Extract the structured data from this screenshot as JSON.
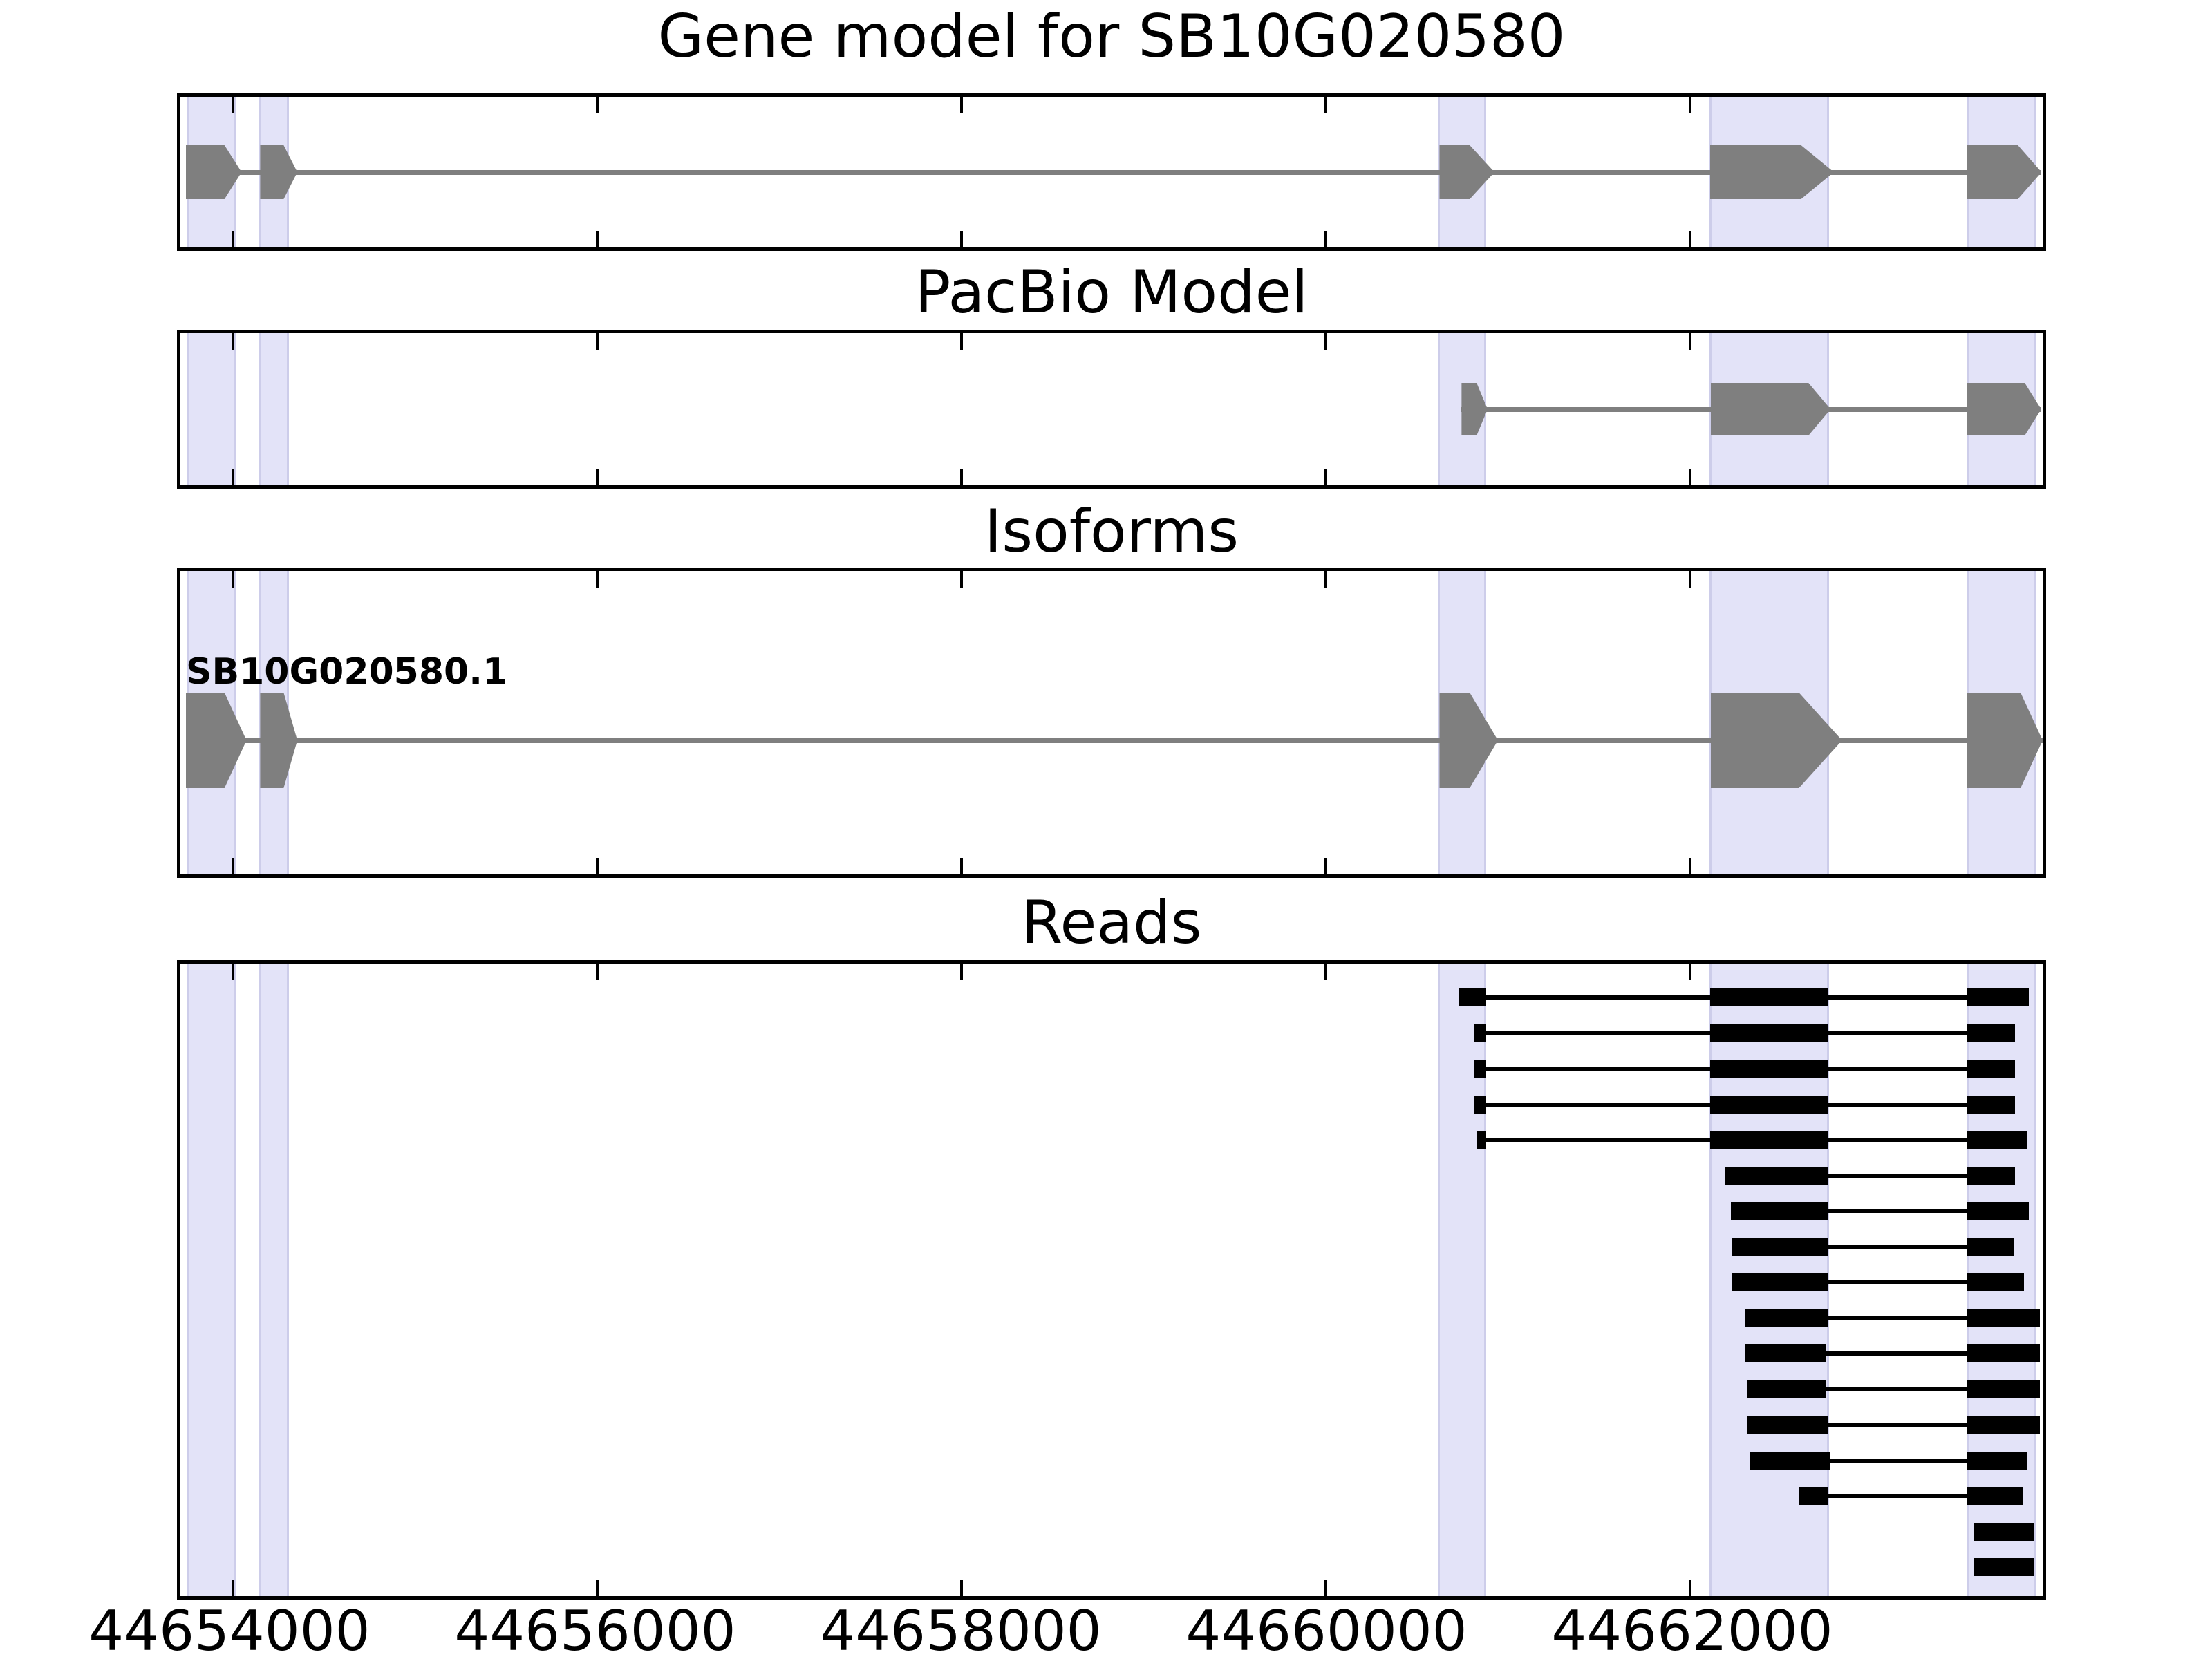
{
  "figure": {
    "background_color": "#ffffff",
    "exon_color": "#7f7f7f",
    "read_color": "#000000",
    "highlight_color": "#e3e3f8",
    "highlight_edge_color": "#cdcdea",
    "border_color": "#000000"
  },
  "chart_data": {
    "type": "genomic-tracks",
    "title": "Gene model for SB10G020580",
    "axis": {
      "xlim": [
        44653713,
        44663936
      ],
      "ticks": [
        44654000,
        44656000,
        44658000,
        44660000,
        44662000
      ],
      "tick_labels": [
        "44654000",
        "44656000",
        "44658000",
        "44660000",
        "44662000"
      ],
      "grid": false
    },
    "highlights": [
      {
        "start": 44653751,
        "end": 44654019
      },
      {
        "start": 44654144,
        "end": 44654310
      },
      {
        "start": 44660617,
        "end": 44660881
      },
      {
        "start": 44662106,
        "end": 44662764
      },
      {
        "start": 44663520,
        "end": 44663898
      }
    ],
    "tracks": [
      {
        "name": "gene_model",
        "title": "Gene model for SB10G020580",
        "strand": "+",
        "exons": [
          {
            "start": 44653743,
            "end": 44653955,
            "tip": 44654049
          },
          {
            "start": 44654151,
            "end": 44654280,
            "tip": 44654355
          },
          {
            "start": 44660625,
            "end": 44660791,
            "tip": 44660927
          },
          {
            "start": 44662110,
            "end": 44662610,
            "tip": 44662790
          },
          {
            "start": 44663520,
            "end": 44663800,
            "tip": 44663930
          }
        ]
      },
      {
        "name": "pacbio_model",
        "title": "PacBio Model",
        "strand": "+",
        "exons": [
          {
            "start": 44660746,
            "end": 44660829,
            "tip": 44660889
          },
          {
            "start": 44662113,
            "end": 44662651,
            "tip": 44662772
          },
          {
            "start": 44663520,
            "end": 44663838,
            "tip": 44663928
          }
        ]
      },
      {
        "name": "isoforms",
        "title": "Isoforms",
        "isoforms": [
          {
            "label": "SB10G020580.1",
            "strand": "+",
            "exons": [
              {
                "start": 44653743,
                "end": 44653955,
                "tip": 44654076
              },
              {
                "start": 44654151,
                "end": 44654280,
                "tip": 44654355
              },
              {
                "start": 44660625,
                "end": 44660791,
                "tip": 44660946
              },
              {
                "start": 44662113,
                "end": 44662598,
                "tip": 44662835
              },
              {
                "start": 44663520,
                "end": 44663815,
                "tip": 44663936
              }
            ]
          }
        ]
      },
      {
        "name": "reads",
        "title": "Reads",
        "reads": [
          {
            "blocks": [
              [
                44660734,
                44660881
              ],
              [
                44662110,
                44662760
              ],
              [
                44663520,
                44663860
              ]
            ]
          },
          {
            "blocks": [
              [
                44660813,
                44660881
              ],
              [
                44662110,
                44662760
              ],
              [
                44663520,
                44663785
              ]
            ]
          },
          {
            "blocks": [
              [
                44660813,
                44660881
              ],
              [
                44662110,
                44662760
              ],
              [
                44663520,
                44663785
              ]
            ]
          },
          {
            "blocks": [
              [
                44660813,
                44660881
              ],
              [
                44662110,
                44662760
              ],
              [
                44663520,
                44663785
              ]
            ]
          },
          {
            "blocks": [
              [
                44660828,
                44660881
              ],
              [
                44662110,
                44662760
              ],
              [
                44663520,
                44663853
              ]
            ]
          },
          {
            "blocks": [
              [
                44662196,
                44662760
              ],
              [
                44663520,
                44663785
              ]
            ]
          },
          {
            "blocks": [
              [
                44662223,
                44662760
              ],
              [
                44663520,
                44663860
              ]
            ]
          },
          {
            "blocks": [
              [
                44662231,
                44662760
              ],
              [
                44663520,
                44663777
              ]
            ]
          },
          {
            "blocks": [
              [
                44662234,
                44662760
              ],
              [
                44663520,
                44663834
              ]
            ]
          },
          {
            "blocks": [
              [
                44662302,
                44662760
              ],
              [
                44663520,
                44663921
              ]
            ]
          },
          {
            "blocks": [
              [
                44662302,
                44662745
              ],
              [
                44663520,
                44663921
              ]
            ]
          },
          {
            "blocks": [
              [
                44662317,
                44662745
              ],
              [
                44663520,
                44663921
              ]
            ]
          },
          {
            "blocks": [
              [
                44662317,
                44662760
              ],
              [
                44663520,
                44663921
              ]
            ]
          },
          {
            "blocks": [
              [
                44662332,
                44662772
              ],
              [
                44663520,
                44663853
              ]
            ]
          },
          {
            "blocks": [
              [
                44662597,
                44662760
              ],
              [
                44663520,
                44663827
              ]
            ]
          },
          {
            "blocks": [
              [
                44663558,
                44663890
              ]
            ]
          },
          {
            "blocks": [
              [
                44663558,
                44663890
              ]
            ]
          }
        ]
      }
    ]
  }
}
